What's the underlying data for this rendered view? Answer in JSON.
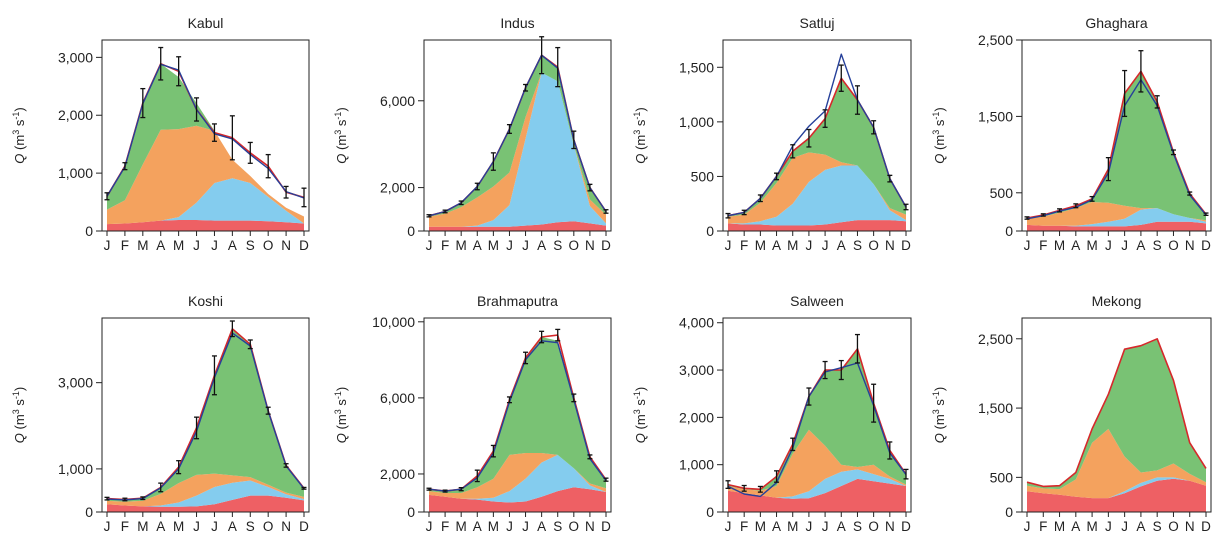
{
  "colors": {
    "layer_red": "#ee6064",
    "layer_light_blue": "#84ccee",
    "layer_orange": "#f4a25e",
    "layer_green": "#79c274",
    "line_total": "#d6282b",
    "line_observed": "#26409a",
    "error_bar": "#111111"
  },
  "chart_data": [
    {
      "type": "area",
      "title": "Kabul",
      "categories": [
        "J",
        "F",
        "M",
        "A",
        "M",
        "J",
        "J",
        "A",
        "S",
        "O",
        "N",
        "D"
      ],
      "ylabel": "Q (m3 s-1)",
      "ylim": [
        0,
        3300
      ],
      "yticks": [
        0,
        1000,
        2000,
        3000
      ],
      "ytick_labels": [
        "0",
        "1,000",
        "2,000",
        "3,000"
      ],
      "stack": [
        {
          "color": "red",
          "values": [
            120,
            130,
            150,
            180,
            190,
            190,
            180,
            180,
            180,
            170,
            150,
            130
          ]
        },
        {
          "color": "light-blue",
          "values": [
            0,
            0,
            0,
            0,
            50,
            300,
            650,
            730,
            650,
            420,
            200,
            0
          ]
        },
        {
          "color": "orange",
          "values": [
            250,
            400,
            1000,
            1570,
            1520,
            1330,
            900,
            320,
            120,
            50,
            50,
            120
          ]
        },
        {
          "color": "green",
          "values": [
            230,
            590,
            1060,
            1140,
            900,
            390,
            0,
            0,
            0,
            0,
            0,
            0
          ]
        }
      ],
      "total": [
        600,
        1120,
        2210,
        2890,
        2760,
        2100,
        1700,
        1610,
        1350,
        1120,
        670,
        580
      ],
      "observed": [
        600,
        1110,
        2200,
        2880,
        2780,
        2100,
        1680,
        1590,
        1320,
        1080,
        680,
        570
      ],
      "error": [
        60,
        60,
        250,
        280,
        250,
        200,
        150,
        380,
        180,
        200,
        100,
        160
      ]
    },
    {
      "type": "area",
      "title": "Indus",
      "categories": [
        "J",
        "F",
        "M",
        "A",
        "M",
        "J",
        "J",
        "A",
        "S",
        "O",
        "N",
        "D"
      ],
      "ylabel": "Q (m3 s-1)",
      "ylim": [
        0,
        8800
      ],
      "yticks": [
        0,
        2000,
        6000
      ],
      "ytick_labels": [
        "0",
        "2,000",
        "6,000"
      ],
      "stack": [
        {
          "color": "red",
          "values": [
            200,
            200,
            200,
            200,
            200,
            200,
            250,
            300,
            400,
            450,
            350,
            250
          ]
        },
        {
          "color": "light-blue",
          "values": [
            0,
            0,
            0,
            50,
            300,
            1000,
            4000,
            7000,
            6500,
            3500,
            800,
            100
          ]
        },
        {
          "color": "orange",
          "values": [
            450,
            600,
            900,
            1300,
            1550,
            1500,
            1000,
            0,
            0,
            0,
            300,
            400
          ]
        },
        {
          "color": "green",
          "values": [
            50,
            100,
            200,
            500,
            1150,
            2000,
            1350,
            800,
            650,
            250,
            550,
            150
          ]
        }
      ],
      "total": [
        700,
        900,
        1300,
        2050,
        3200,
        4700,
        6600,
        8100,
        7550,
        4200,
        2000,
        900
      ],
      "observed": [
        700,
        900,
        1300,
        2050,
        3200,
        4700,
        6600,
        8100,
        7500,
        4200,
        2000,
        900
      ],
      "error": [
        50,
        60,
        80,
        150,
        400,
        200,
        150,
        850,
        900,
        400,
        150,
        80
      ]
    },
    {
      "type": "area",
      "title": "Satluj",
      "categories": [
        "J",
        "F",
        "M",
        "A",
        "M",
        "J",
        "J",
        "A",
        "S",
        "O",
        "N",
        "D"
      ],
      "ylabel": "Q (m3 s-1)",
      "ylim": [
        0,
        1750
      ],
      "yticks": [
        0,
        500,
        1000,
        1500
      ],
      "ytick_labels": [
        "0",
        "500",
        "1,000",
        "1,500"
      ],
      "stack": [
        {
          "color": "red",
          "values": [
            70,
            60,
            60,
            50,
            50,
            50,
            60,
            80,
            100,
            100,
            100,
            90
          ]
        },
        {
          "color": "light-blue",
          "values": [
            0,
            10,
            30,
            80,
            200,
            400,
            500,
            520,
            500,
            330,
            90,
            10
          ]
        },
        {
          "color": "orange",
          "values": [
            60,
            80,
            170,
            310,
            420,
            270,
            140,
            30,
            0,
            0,
            20,
            50
          ]
        },
        {
          "color": "green",
          "values": [
            10,
            20,
            40,
            60,
            60,
            130,
            330,
            770,
            600,
            520,
            270,
            70
          ]
        }
      ],
      "total": [
        140,
        170,
        300,
        500,
        730,
        850,
        1030,
        1400,
        1200,
        950,
        480,
        220
      ],
      "observed": [
        140,
        170,
        300,
        500,
        780,
        960,
        1100,
        1620,
        1200,
        950,
        480,
        220
      ],
      "error": [
        20,
        20,
        30,
        30,
        60,
        80,
        80,
        120,
        130,
        60,
        30,
        25
      ]
    },
    {
      "type": "area",
      "title": "Ghaghara",
      "categories": [
        "J",
        "F",
        "M",
        "A",
        "M",
        "J",
        "J",
        "A",
        "S",
        "O",
        "N",
        "D"
      ],
      "ylabel": "Q (m3 s-1)",
      "ylim": [
        0,
        2500
      ],
      "yticks": [
        0,
        500,
        1500,
        2500
      ],
      "ytick_labels": [
        "0",
        "500",
        "1,500",
        "2,500"
      ],
      "stack": [
        {
          "color": "red",
          "values": [
            80,
            70,
            70,
            60,
            60,
            60,
            60,
            80,
            120,
            120,
            120,
            100
          ]
        },
        {
          "color": "light-blue",
          "values": [
            0,
            0,
            0,
            10,
            30,
            60,
            100,
            200,
            180,
            100,
            50,
            20
          ]
        },
        {
          "color": "orange",
          "values": [
            80,
            120,
            170,
            230,
            290,
            250,
            170,
            20,
            0,
            0,
            0,
            20
          ]
        },
        {
          "color": "green",
          "values": [
            10,
            20,
            30,
            30,
            40,
            440,
            1470,
            1790,
            1390,
            810,
            320,
            80
          ]
        }
      ],
      "total": [
        170,
        210,
        270,
        330,
        420,
        810,
        1800,
        2090,
        1690,
        1030,
        490,
        220
      ],
      "observed": [
        160,
        200,
        260,
        310,
        410,
        760,
        1640,
        1980,
        1640,
        1010,
        470,
        210
      ],
      "error": [
        15,
        15,
        20,
        25,
        30,
        150,
        300,
        270,
        80,
        30,
        20,
        15
      ]
    },
    {
      "type": "area",
      "title": "Koshi",
      "categories": [
        "J",
        "F",
        "M",
        "A",
        "M",
        "J",
        "J",
        "A",
        "S",
        "O",
        "N",
        "D"
      ],
      "ylabel": "Q (m3 s-1)",
      "ylim": [
        0,
        4500
      ],
      "yticks": [
        0,
        1000,
        3000
      ],
      "ytick_labels": [
        "0",
        "1,000",
        "3,000"
      ],
      "stack": [
        {
          "color": "red",
          "values": [
            180,
            150,
            130,
            120,
            120,
            130,
            180,
            280,
            380,
            380,
            330,
            270
          ]
        },
        {
          "color": "light-blue",
          "values": [
            0,
            0,
            0,
            30,
            100,
            250,
            400,
            400,
            350,
            200,
            80,
            30
          ]
        },
        {
          "color": "orange",
          "values": [
            80,
            90,
            130,
            270,
            450,
            480,
            310,
            170,
            80,
            50,
            40,
            50
          ]
        },
        {
          "color": "green",
          "values": [
            50,
            50,
            60,
            150,
            370,
            1090,
            2280,
            3400,
            3080,
            1720,
            630,
            200
          ]
        }
      ],
      "total": [
        310,
        290,
        320,
        570,
        1040,
        1950,
        3170,
        4250,
        3890,
        2350,
        1080,
        550
      ],
      "observed": [
        300,
        280,
        310,
        560,
        1000,
        1870,
        3120,
        4150,
        3850,
        2340,
        1070,
        540
      ],
      "error": [
        30,
        30,
        30,
        100,
        150,
        250,
        450,
        180,
        100,
        80,
        40,
        20
      ]
    },
    {
      "type": "area",
      "title": "Brahmaputra",
      "categories": [
        "J",
        "F",
        "M",
        "A",
        "M",
        "J",
        "J",
        "A",
        "S",
        "O",
        "N",
        "D"
      ],
      "ylabel": "Q (m3 s-1)",
      "ylim": [
        0,
        10200
      ],
      "yticks": [
        0,
        2000,
        6000,
        10000
      ],
      "ytick_labels": [
        "0",
        "2,000",
        "6,000",
        "10,000"
      ],
      "stack": [
        {
          "color": "red",
          "values": [
            900,
            800,
            700,
            650,
            550,
            500,
            550,
            800,
            1100,
            1300,
            1200,
            1050
          ]
        },
        {
          "color": "light-blue",
          "values": [
            0,
            0,
            0,
            50,
            200,
            600,
            1200,
            1800,
            1900,
            1000,
            200,
            0
          ]
        },
        {
          "color": "orange",
          "values": [
            200,
            200,
            300,
            600,
            1000,
            1900,
            1350,
            500,
            0,
            0,
            100,
            200
          ]
        },
        {
          "color": "green",
          "values": [
            100,
            100,
            200,
            600,
            1450,
            2900,
            5000,
            6100,
            6000,
            3700,
            1400,
            450
          ]
        }
      ],
      "total": [
        1200,
        1100,
        1200,
        1900,
        3200,
        5900,
        8100,
        9200,
        9300,
        6000,
        2900,
        1700
      ],
      "observed": [
        1200,
        1100,
        1200,
        1800,
        3100,
        5800,
        8000,
        9000,
        8900,
        5900,
        2800,
        1650
      ],
      "error": [
        50,
        50,
        80,
        300,
        300,
        150,
        300,
        300,
        300,
        200,
        100,
        80
      ]
    },
    {
      "type": "area",
      "title": "Salween",
      "categories": [
        "J",
        "F",
        "M",
        "A",
        "M",
        "J",
        "J",
        "A",
        "S",
        "O",
        "N",
        "D"
      ],
      "ylabel": "Q (m3 s-1)",
      "ylim": [
        0,
        4100
      ],
      "yticks": [
        0,
        1000,
        2000,
        3000,
        4000
      ],
      "ytick_labels": [
        "0",
        "1,000",
        "2,000",
        "3,000",
        "4,000"
      ],
      "stack": [
        {
          "color": "red",
          "values": [
            450,
            400,
            350,
            300,
            280,
            290,
            400,
            550,
            700,
            650,
            600,
            550
          ]
        },
        {
          "color": "light-blue",
          "values": [
            0,
            0,
            0,
            0,
            50,
            150,
            300,
            300,
            200,
            150,
            100,
            0
          ]
        },
        {
          "color": "orange",
          "values": [
            100,
            80,
            100,
            250,
            900,
            1300,
            700,
            150,
            50,
            200,
            50,
            30
          ]
        },
        {
          "color": "green",
          "values": [
            30,
            20,
            30,
            200,
            200,
            700,
            1600,
            2000,
            2500,
            1300,
            550,
            220
          ]
        }
      ],
      "total": [
        580,
        500,
        480,
        750,
        1430,
        2440,
        3000,
        3000,
        3450,
        2300,
        1300,
        800
      ],
      "observed": [
        540,
        380,
        330,
        620,
        1350,
        2440,
        2960,
        3050,
        3150,
        2250,
        1250,
        790
      ],
      "error": [
        80,
        60,
        60,
        120,
        130,
        180,
        180,
        200,
        300,
        400,
        180,
        100
      ]
    },
    {
      "type": "area",
      "title": "Mekong",
      "categories": [
        "J",
        "F",
        "M",
        "A",
        "M",
        "J",
        "J",
        "A",
        "S",
        "O",
        "N",
        "D"
      ],
      "ylabel": "Q (m3 s-1)",
      "ylim": [
        0,
        2800
      ],
      "yticks": [
        0,
        500,
        1500,
        2500
      ],
      "ytick_labels": [
        "0",
        "500",
        "1,500",
        "2,500"
      ],
      "stack": [
        {
          "color": "red",
          "values": [
            300,
            270,
            250,
            220,
            200,
            200,
            270,
            370,
            450,
            480,
            450,
            380
          ]
        },
        {
          "color": "light-blue",
          "values": [
            0,
            0,
            0,
            0,
            0,
            0,
            30,
            50,
            50,
            20,
            0,
            0
          ]
        },
        {
          "color": "orange",
          "values": [
            80,
            70,
            80,
            250,
            800,
            1000,
            500,
            150,
            100,
            200,
            100,
            50
          ]
        },
        {
          "color": "green",
          "values": [
            50,
            30,
            50,
            100,
            200,
            500,
            1550,
            1830,
            1900,
            1200,
            450,
            200
          ]
        }
      ],
      "total": [
        430,
        370,
        380,
        570,
        1200,
        1700,
        2350,
        2400,
        2500,
        1900,
        1000,
        630
      ]
    }
  ]
}
